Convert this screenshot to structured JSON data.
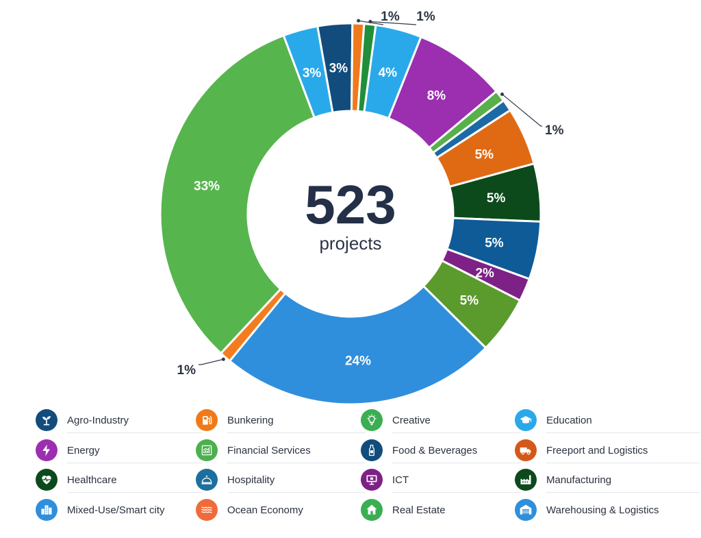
{
  "center": {
    "value": "523",
    "label": "projects"
  },
  "chart_data": {
    "type": "pie",
    "values": [
      3,
      1,
      1,
      4,
      8,
      1,
      1,
      5,
      5,
      5,
      2,
      5,
      24,
      1,
      33,
      3
    ],
    "labels": [
      "3%",
      "1%",
      "1%",
      "4%",
      "8%",
      "1%",
      "",
      "5%",
      "5%",
      "5%",
      "2%",
      "5%",
      "24%",
      "1%",
      "33%",
      "3%"
    ],
    "colors": [
      "#124c7d",
      "#f07a1b",
      "#1f8f3a",
      "#2aa9ea",
      "#9b2fb0",
      "#58b04a",
      "#1c6aa5",
      "#e06a14",
      "#0c4a1c",
      "#0e5b98",
      "#7e2186",
      "#5b9a2c",
      "#2f8fdc",
      "#f47c20",
      "#57b54d",
      "#2aa9ea"
    ]
  },
  "legend": [
    {
      "label": "Agro-Industry",
      "icon": "sprout-icon",
      "color": "#124c7d"
    },
    {
      "label": "Bunkering",
      "icon": "fuel-pump-icon",
      "color": "#f07a1b"
    },
    {
      "label": "Creative",
      "icon": "lightbulb-icon",
      "color": "#3cae52"
    },
    {
      "label": "Education",
      "icon": "graduation-cap-icon",
      "color": "#2aa9ea"
    },
    {
      "label": "Energy",
      "icon": "lightning-icon",
      "color": "#9b2fb0"
    },
    {
      "label": "Financial Services",
      "icon": "growth-chart-icon",
      "color": "#4caf50"
    },
    {
      "label": "Food & Beverages",
      "icon": "bottle-icon",
      "color": "#124c7d"
    },
    {
      "label": "Freeport and Logistics",
      "icon": "truck-icon",
      "color": "#d4581a"
    },
    {
      "label": "Healthcare",
      "icon": "heart-pulse-icon",
      "color": "#0c4a1c"
    },
    {
      "label": "Hospitality",
      "icon": "service-bell-icon",
      "color": "#1c6f9e"
    },
    {
      "label": "ICT",
      "icon": "monitor-icon",
      "color": "#7e2186"
    },
    {
      "label": "Manufacturing",
      "icon": "factory-icon",
      "color": "#0c4a1c"
    },
    {
      "label": "Mixed-Use/Smart city",
      "icon": "city-buildings-icon",
      "color": "#2f8fdc"
    },
    {
      "label": "Ocean Economy",
      "icon": "waves-icon",
      "color": "#f06b3a"
    },
    {
      "label": "Real Estate",
      "icon": "house-icon",
      "color": "#3cae52"
    },
    {
      "label": "Warehousing & Logistics",
      "icon": "warehouse-icon",
      "color": "#2f8fdc"
    }
  ]
}
